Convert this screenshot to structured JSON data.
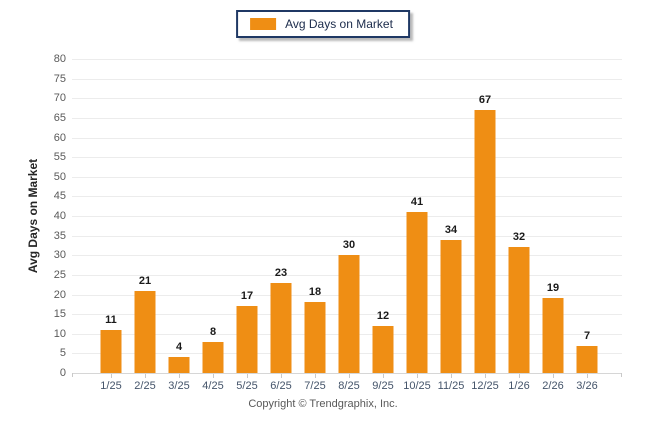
{
  "legend": {
    "label": "Avg Days on Market",
    "swatch_color": "#EF8E14"
  },
  "colors": {
    "bar": "#EF8E14",
    "legend_border": "#1F3864",
    "gridline": "#ECECEC",
    "axis_line": "#D6D6D6",
    "x_label": "#44546A",
    "y_label": "#5A5A5A",
    "value_label": "#1A1A1A"
  },
  "footer": {
    "copyright": "Copyright © Trendgraphix, Inc."
  },
  "chart_data": {
    "type": "bar",
    "categories": [
      "1/25",
      "2/25",
      "3/25",
      "4/25",
      "5/25",
      "6/25",
      "7/25",
      "8/25",
      "9/25",
      "10/25",
      "11/25",
      "12/25",
      "1/26",
      "2/26",
      "3/26"
    ],
    "values": [
      11,
      21,
      4,
      8,
      17,
      23,
      18,
      30,
      12,
      41,
      34,
      67,
      32,
      19,
      7
    ],
    "series": [
      {
        "name": "Avg Days on Market",
        "values": [
          11,
          21,
          4,
          8,
          17,
          23,
          18,
          30,
          12,
          41,
          34,
          67,
          32,
          19,
          7
        ]
      }
    ],
    "title": "",
    "xlabel": "",
    "ylabel": "Avg Days on Market",
    "ylim": [
      0,
      80
    ],
    "ytick_step": 5,
    "grid": true,
    "legend_position": "top-center"
  }
}
